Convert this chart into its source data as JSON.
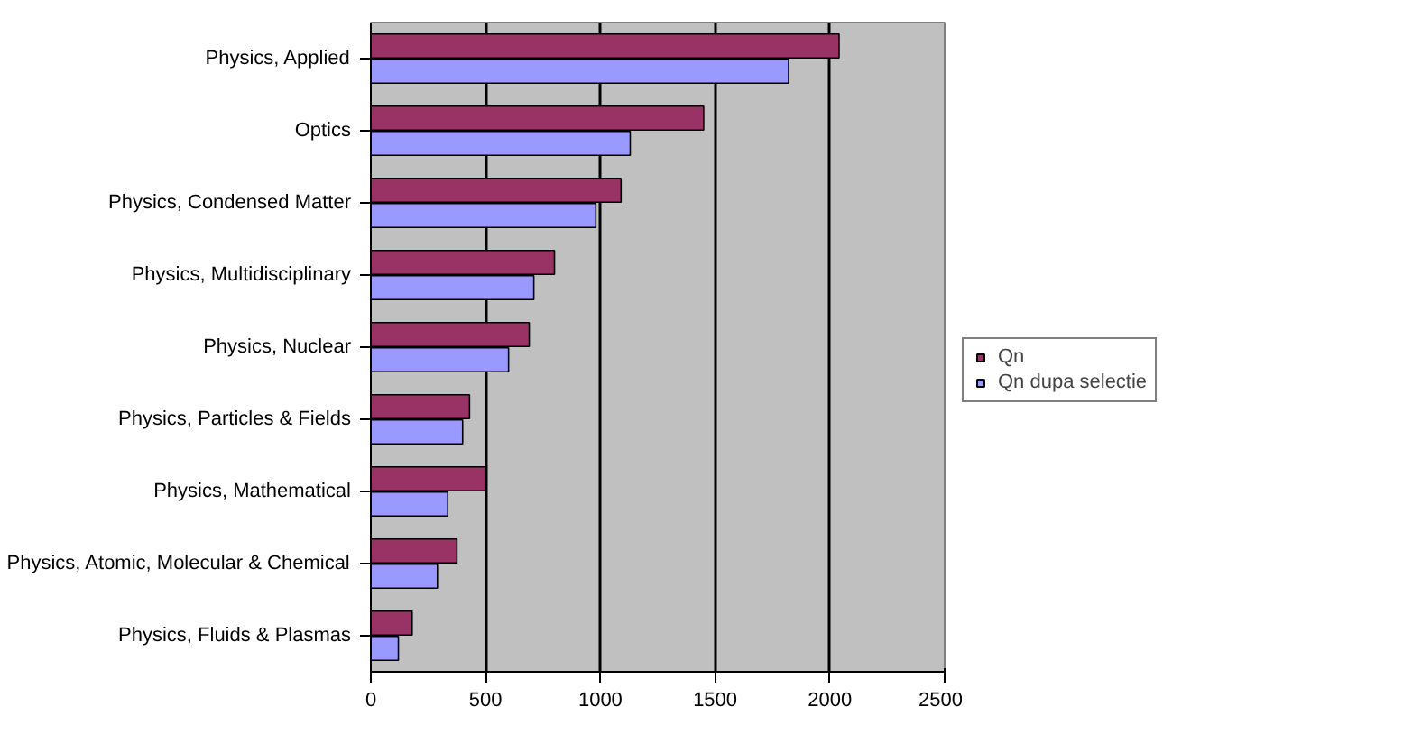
{
  "chart_data": {
    "type": "bar",
    "orientation": "horizontal",
    "categories": [
      "Physics, Applied",
      "Optics",
      "Physics, Condensed Matter",
      "Physics, Multidisciplinary",
      "Physics, Nuclear",
      "Physics, Particles & Fields",
      "Physics, Mathematical",
      "Physics, Atomic, Molecular & Chemical",
      "Physics, Fluids & Plasmas"
    ],
    "series": [
      {
        "name": "Qn",
        "color": "#993366",
        "values": [
          2040,
          1450,
          1090,
          800,
          690,
          430,
          500,
          375,
          180
        ]
      },
      {
        "name": "Qn dupa selectie",
        "color": "#9999ff",
        "values": [
          1820,
          1130,
          980,
          710,
          600,
          400,
          335,
          290,
          120
        ]
      }
    ],
    "xlim": [
      0,
      2500
    ],
    "xticks": [
      0,
      500,
      1000,
      1500,
      2000,
      2500
    ],
    "grid": "x",
    "legend": "right"
  }
}
